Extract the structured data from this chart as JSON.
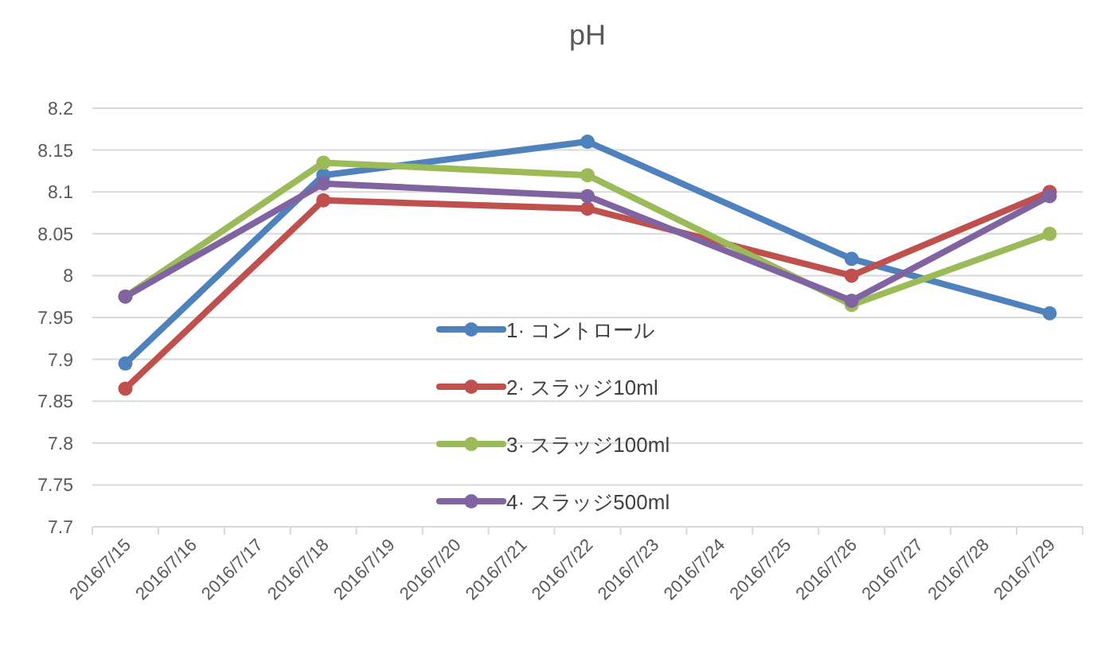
{
  "chart_data": {
    "type": "line",
    "title": "pH",
    "categories": [
      "2016/7/15",
      "2016/7/16",
      "2016/7/17",
      "2016/7/18",
      "2016/7/19",
      "2016/7/20",
      "2016/7/21",
      "2016/7/22",
      "2016/7/23",
      "2016/7/24",
      "2016/7/25",
      "2016/7/26",
      "2016/7/27",
      "2016/7/28",
      "2016/7/29"
    ],
    "series": [
      {
        "name": "1· コントロール",
        "color": "#4f81bd",
        "x": [
          "2016/7/15",
          "2016/7/18",
          "2016/7/22",
          "2016/7/26",
          "2016/7/29"
        ],
        "values": [
          7.895,
          8.12,
          8.16,
          8.02,
          7.955
        ]
      },
      {
        "name": "2· スラッジ10ml",
        "color": "#c0504d",
        "x": [
          "2016/7/15",
          "2016/7/18",
          "2016/7/22",
          "2016/7/26",
          "2016/7/29"
        ],
        "values": [
          7.865,
          8.09,
          8.08,
          8.0,
          8.1
        ]
      },
      {
        "name": "3· スラッジ100ml",
        "color": "#9bbb59",
        "x": [
          "2016/7/15",
          "2016/7/18",
          "2016/7/22",
          "2016/7/26",
          "2016/7/29"
        ],
        "values": [
          7.975,
          8.135,
          8.12,
          7.965,
          8.05
        ]
      },
      {
        "name": "4· スラッジ500ml",
        "color": "#8064a2",
        "x": [
          "2016/7/15",
          "2016/7/18",
          "2016/7/22",
          "2016/7/26",
          "2016/7/29"
        ],
        "values": [
          7.975,
          8.11,
          8.095,
          7.97,
          8.095
        ]
      }
    ],
    "ylim": [
      7.7,
      8.2
    ],
    "yticks": [
      7.7,
      7.75,
      7.8,
      7.85,
      7.9,
      7.95,
      8,
      8.05,
      8.1,
      8.15,
      8.2
    ],
    "grid": "y",
    "legend": "bottom",
    "marker": "circle",
    "line_style": "solid"
  }
}
